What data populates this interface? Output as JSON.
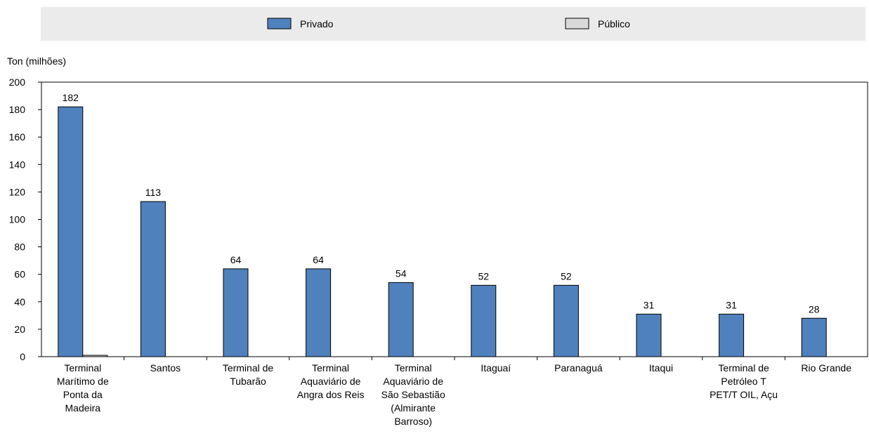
{
  "chart_data": {
    "type": "bar",
    "title": "",
    "ylabel": "Ton (milhões)",
    "xlabel": "",
    "ylim": [
      0,
      200
    ],
    "yticks": [
      0,
      20,
      40,
      60,
      80,
      100,
      120,
      140,
      160,
      180,
      200
    ],
    "grid": false,
    "legend_position": "top",
    "categories": [
      [
        "Terminal",
        "Marítimo de",
        "Ponta da",
        "Madeira"
      ],
      [
        "Santos"
      ],
      [
        "Terminal de",
        "Tubarão"
      ],
      [
        "Terminal",
        "Aquaviário de",
        "Angra dos Reis"
      ],
      [
        "Terminal",
        "Aquaviário de",
        "São Sebastião",
        "(Almirante",
        "Barroso)"
      ],
      [
        "Itaguaí"
      ],
      [
        "Paranaguá"
      ],
      [
        "Itaqui"
      ],
      [
        "Terminal de",
        "Petróleo T",
        "PET/T OIL, Açu"
      ],
      [
        "Rio Grande"
      ]
    ],
    "series": [
      {
        "name": "Privado",
        "color": "#4f81bd",
        "values": [
          182,
          113,
          64,
          64,
          54,
          52,
          52,
          31,
          31,
          28
        ],
        "data_labels": [
          "182",
          "113",
          "64",
          "64",
          "54",
          "52",
          "52",
          "31",
          "31",
          "28"
        ]
      },
      {
        "name": "Público",
        "color": "#d9d9d9",
        "values": [
          1,
          0,
          0,
          0,
          0,
          0,
          0,
          0,
          0,
          0
        ]
      }
    ]
  }
}
